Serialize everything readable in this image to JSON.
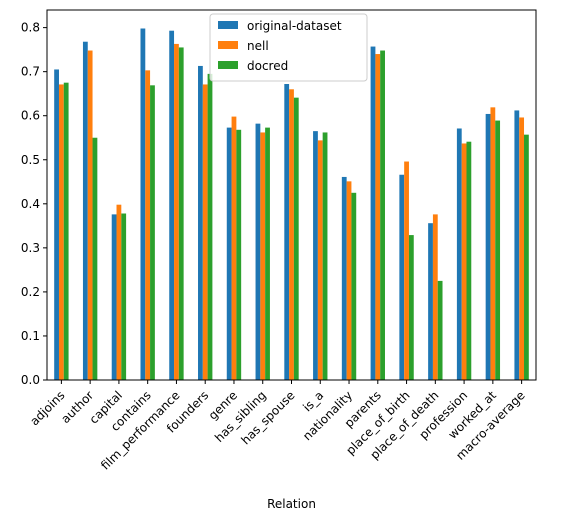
{
  "chart_data": {
    "type": "bar",
    "title": "",
    "xlabel": "Relation",
    "ylabel": "",
    "ylim": [
      0,
      0.84
    ],
    "yticks": [
      0.0,
      0.1,
      0.2,
      0.3,
      0.4,
      0.5,
      0.6,
      0.7,
      0.8
    ],
    "ytick_labels": [
      "0.0",
      "0.1",
      "0.2",
      "0.3",
      "0.4",
      "0.5",
      "0.6",
      "0.7",
      "0.8"
    ],
    "grid": false,
    "legend_position": "top-center",
    "categories": [
      "adjoins",
      "author",
      "capital",
      "contains",
      "film_performance",
      "founders",
      "genre",
      "has_sibling",
      "has_spouse",
      "is_a",
      "nationality",
      "parents",
      "place_of_birth",
      "place_of_death",
      "profession",
      "worked_at",
      "macro-average"
    ],
    "series": [
      {
        "name": "original-dataset",
        "color": "#1f77b4",
        "values": [
          0.705,
          0.768,
          0.376,
          0.798,
          0.793,
          0.713,
          0.573,
          0.582,
          0.672,
          0.565,
          0.461,
          0.757,
          0.466,
          0.356,
          0.571,
          0.604,
          0.612
        ]
      },
      {
        "name": "nell",
        "color": "#ff7f0e",
        "values": [
          0.671,
          0.748,
          0.398,
          0.703,
          0.763,
          0.671,
          0.598,
          0.562,
          0.66,
          0.544,
          0.451,
          0.74,
          0.496,
          0.376,
          0.537,
          0.619,
          0.596
        ]
      },
      {
        "name": "docred",
        "color": "#2ca02c",
        "values": [
          0.675,
          0.55,
          0.378,
          0.669,
          0.755,
          0.695,
          0.568,
          0.573,
          0.641,
          0.562,
          0.425,
          0.748,
          0.329,
          0.225,
          0.541,
          0.589,
          0.557
        ]
      }
    ]
  }
}
